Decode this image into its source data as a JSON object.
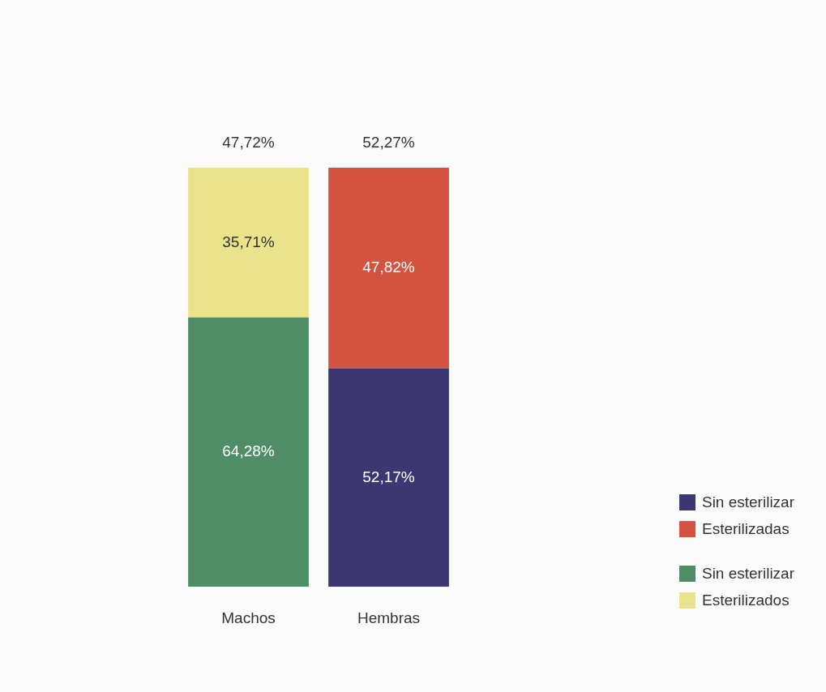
{
  "chart_data": {
    "type": "bar",
    "categories": [
      "Machos",
      "Hembras"
    ],
    "stacked": true,
    "series": [
      {
        "name": "Sin esterilizar",
        "color": "#3c3773",
        "values": [
          null,
          52.17
        ],
        "value_labels": [
          null,
          "52,17%"
        ]
      },
      {
        "name": "Esterilizadas",
        "color": "#d2533f",
        "values": [
          null,
          47.82
        ],
        "value_labels": [
          null,
          "47,82%"
        ]
      },
      {
        "name": "Sin esterilizar",
        "color": "#4f8d67",
        "values": [
          64.28,
          null
        ],
        "value_labels": [
          "64,28%",
          null
        ]
      },
      {
        "name": "Esterilizados",
        "color": "#ebe38b",
        "values": [
          35.71,
          null
        ],
        "value_labels": [
          "35,71%",
          null
        ]
      }
    ],
    "annotations": [
      {
        "text": "47,72%",
        "x": "Machos",
        "y": 99.99
      },
      {
        "text": "52,27%",
        "x": "Hembras",
        "y": 99.99
      }
    ],
    "legend": "bottom right",
    "tick_labels": "x"
  }
}
